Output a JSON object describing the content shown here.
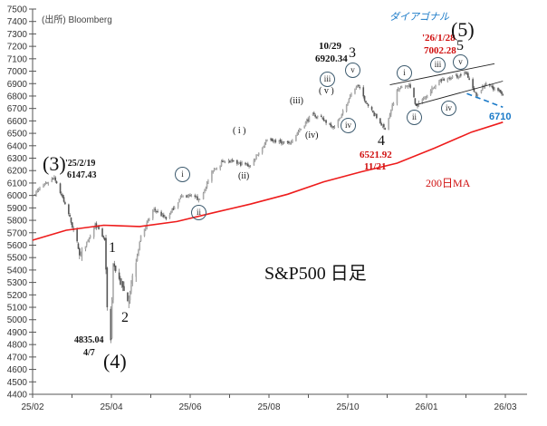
{
  "chart_data": {
    "type": "candlestick",
    "title": "S&P500 日足",
    "source": "(出所) Bloomberg",
    "ylim": [
      4400,
      7500
    ],
    "y_ticks": [
      4400,
      4500,
      4600,
      4700,
      4800,
      4900,
      5000,
      5100,
      5200,
      5300,
      5400,
      5500,
      5600,
      5700,
      5800,
      5900,
      6000,
      6100,
      6200,
      6300,
      6400,
      6500,
      6600,
      6700,
      6800,
      6900,
      7000,
      7100,
      7200,
      7300,
      7400,
      7500
    ],
    "x_ticks": [
      "25/02",
      "25/04",
      "25/06",
      "25/08",
      "25/10",
      "26/01",
      "26/03"
    ],
    "xlim": [
      "2025-02-01",
      "2026-03-01"
    ],
    "price_anchors": [
      [
        "2025-02-01",
        6000
      ],
      [
        "2025-02-10",
        6080
      ],
      [
        "2025-02-19",
        6147
      ],
      [
        "2025-03-03",
        5850
      ],
      [
        "2025-03-13",
        5520
      ],
      [
        "2025-03-25",
        5770
      ],
      [
        "2025-04-02",
        5640
      ],
      [
        "2025-04-04",
        5100
      ],
      [
        "2025-04-07",
        4835
      ],
      [
        "2025-04-09",
        5450
      ],
      [
        "2025-04-21",
        5150
      ],
      [
        "2025-05-02",
        5680
      ],
      [
        "2025-05-13",
        5890
      ],
      [
        "2025-05-23",
        5810
      ],
      [
        "2025-06-05",
        6000
      ],
      [
        "2025-06-20",
        5970
      ],
      [
        "2025-07-01",
        6200
      ],
      [
        "2025-07-10",
        6280
      ],
      [
        "2025-08-01",
        6240
      ],
      [
        "2025-08-15",
        6450
      ],
      [
        "2025-09-02",
        6420
      ],
      [
        "2025-09-22",
        6660
      ],
      [
        "2025-10-10",
        6550
      ],
      [
        "2025-10-20",
        6730
      ],
      [
        "2025-10-29",
        6890
      ],
      [
        "2025-11-07",
        6720
      ],
      [
        "2025-11-21",
        6530
      ],
      [
        "2025-12-01",
        6850
      ],
      [
        "2025-12-11",
        6890
      ],
      [
        "2025-12-17",
        6720
      ],
      [
        "2026-01-05",
        6920
      ],
      [
        "2026-01-28",
        6980
      ],
      [
        "2026-02-05",
        6800
      ],
      [
        "2026-02-12",
        6900
      ],
      [
        "2026-02-20",
        6860
      ],
      [
        "2026-02-27",
        6810
      ]
    ],
    "ma200": {
      "label": "200日MA",
      "color": "#ee1c1c",
      "points": [
        [
          "2025-02-01",
          5640
        ],
        [
          "2025-03-01",
          5720
        ],
        [
          "2025-04-01",
          5760
        ],
        [
          "2025-05-01",
          5750
        ],
        [
          "2025-06-01",
          5790
        ],
        [
          "2025-07-01",
          5860
        ],
        [
          "2025-08-01",
          5930
        ],
        [
          "2025-09-01",
          6010
        ],
        [
          "2025-10-01",
          6110
        ],
        [
          "2025-11-01",
          6190
        ],
        [
          "2025-12-01",
          6260
        ],
        [
          "2026-01-01",
          6380
        ],
        [
          "2026-02-01",
          6510
        ],
        [
          "2026-02-27",
          6590
        ]
      ]
    },
    "channel_upper": [
      [
        "2025-11-25",
        6890
      ],
      [
        "2026-02-20",
        7060
      ]
    ],
    "channel_lower": [
      [
        "2025-12-17",
        6730
      ],
      [
        "2026-02-27",
        6920
      ]
    ],
    "support_dashed": {
      "label": "6710",
      "points": [
        [
          "2026-01-28",
          6820
        ],
        [
          "2026-02-27",
          6710
        ]
      ],
      "color": "#1a7ac8"
    },
    "candle_color": "#777777"
  },
  "annotations": {
    "wave3_paren": "(3)",
    "wave3_date": "'25/2/19",
    "wave3_value": "6147.43",
    "wave4_paren": "(4)",
    "wave4_value": "4835.04",
    "wave4_date": "4/7",
    "w1": "1",
    "w2": "2",
    "w3": "3",
    "w4": "4",
    "w5": "5",
    "w3_date": "10/29",
    "w3_value": "6920.34",
    "w4_value": "6521.92",
    "w4_date": "11/21",
    "w5_date": "'26/1/28",
    "w5_value": "7002.28",
    "wave5_paren": "(5)",
    "diagonal": "ダイアゴナル",
    "c_i": "i",
    "c_ii": "ii",
    "c_iii": "iii",
    "c_iv": "iv",
    "c_v": "v",
    "p_i": "( i )",
    "p_ii": "(ii)",
    "p_iii": "(iii)",
    "p_iv": "(iv)",
    "p_v": "( v )"
  }
}
